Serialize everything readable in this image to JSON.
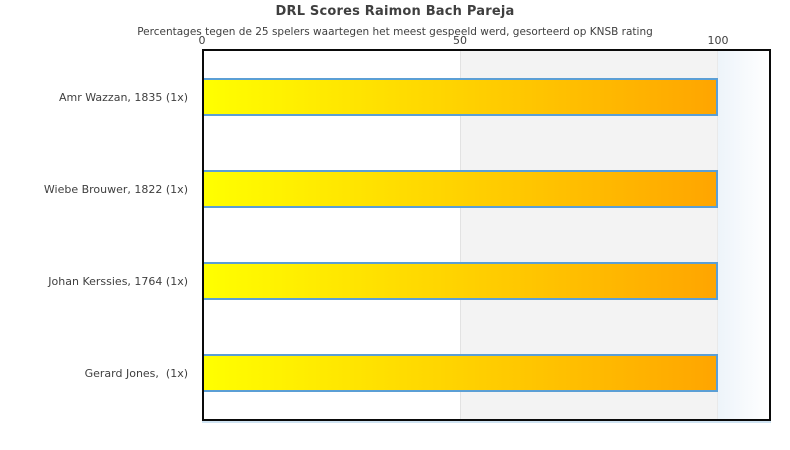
{
  "header": {
    "title": "DRL Scores Raimon Bach Pareja",
    "subtitle": "Percentages tegen de 25 spelers waartegen het meest gespeeld werd, gesorteerd op KNSB rating"
  },
  "axis": {
    "tick_labels": [
      "0",
      "50",
      "100"
    ],
    "tick_values": [
      0,
      50,
      100
    ]
  },
  "chart_data": {
    "type": "bar",
    "orientation": "horizontal",
    "title": "DRL Scores Raimon Bach Pareja",
    "subtitle": "Percentages tegen de 25 spelers waartegen het meest gespeeld werd, gesorteerd op KNSB rating",
    "categories": [
      "Amr Wazzan, 1835 (1x)",
      "Wiebe Brouwer, 1822 (1x)",
      "Johan Kerssies, 1764 (1x)",
      "Gerard Jones,  (1x)"
    ],
    "values": [
      100,
      100,
      100,
      100
    ],
    "xlabel": "",
    "ylabel": "",
    "xlim": [
      0,
      110
    ],
    "xticks": [
      0,
      50,
      100
    ],
    "grid": false,
    "legend": false,
    "colors": {
      "bar_gradient_start": "#ffff00",
      "bar_gradient_end": "#ffa500",
      "bar_border": "#5b9fd5",
      "band_50_100": "#f3f3f3",
      "band_over_100_start": "#edf4fa",
      "plot_border": "#0a0a0a",
      "text": "#3f3f3f"
    }
  }
}
